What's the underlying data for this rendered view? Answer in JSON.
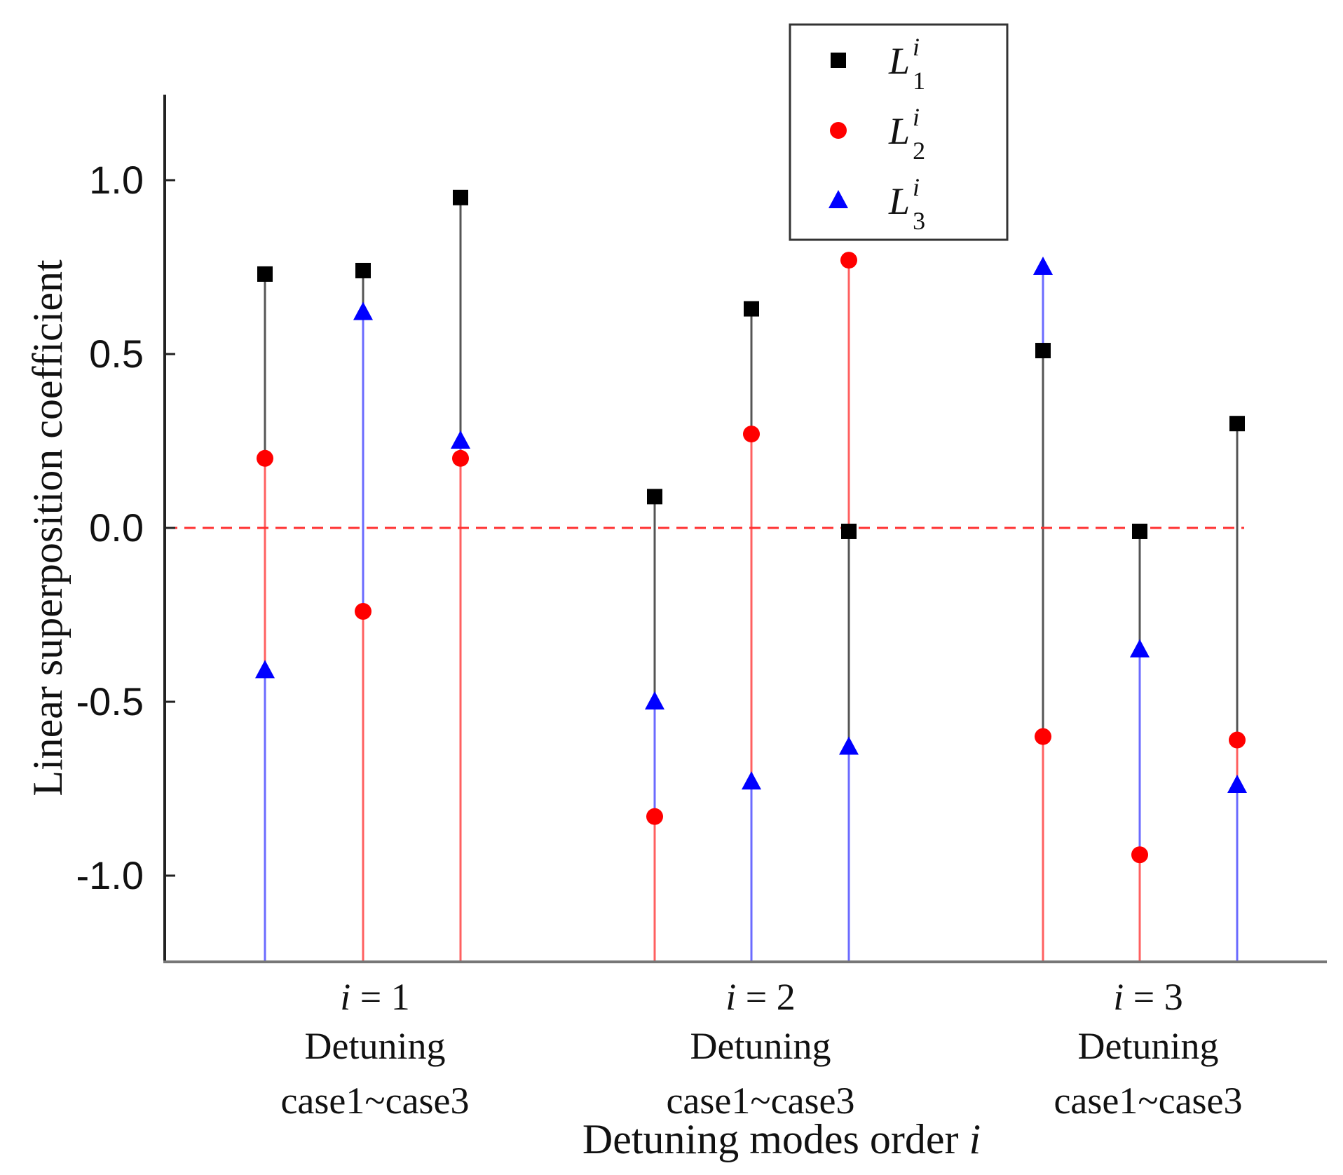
{
  "chart_data": {
    "type": "stem",
    "ylabel": "Linear superposition coefficient",
    "xlabel": "Detuning modes order i",
    "ylim": [
      -1.25,
      1.25
    ],
    "yticks": [
      1.0,
      0.5,
      0.0,
      -0.5,
      -1.0
    ],
    "ytick_labels": [
      "1.0",
      "0.5",
      "0.0",
      "-0.5",
      "-1.0"
    ],
    "reference_line": {
      "y": 0.0,
      "style": "dashed",
      "color": "#ff3030"
    },
    "groups": [
      {
        "label_line1": "i = 1",
        "label_line2": "Detuning",
        "label_line3": "case1~case3"
      },
      {
        "label_line1": "i = 2",
        "label_line2": "Detuning",
        "label_line3": "case1~case3"
      },
      {
        "label_line1": "i = 3",
        "label_line2": "Detuning",
        "label_line3": "case1~case3"
      }
    ],
    "series": [
      {
        "name": "L1",
        "legend_base": "L",
        "legend_sub": "1",
        "legend_sup": "i",
        "marker": "square",
        "color": "#000000",
        "stem_color": "#555555",
        "values": [
          0.73,
          0.74,
          0.95,
          0.09,
          0.63,
          -0.01,
          0.51,
          -0.01,
          0.3
        ]
      },
      {
        "name": "L2",
        "legend_base": "L",
        "legend_sub": "2",
        "legend_sup": "i",
        "marker": "circle",
        "color": "#ff0000",
        "stem_color": "#ff6060",
        "values": [
          0.2,
          -0.24,
          0.2,
          -0.83,
          0.27,
          0.77,
          -0.6,
          -0.94,
          -0.61
        ]
      },
      {
        "name": "L3",
        "legend_base": "L",
        "legend_sub": "3",
        "legend_sup": "i",
        "marker": "triangle",
        "color": "#0000ff",
        "stem_color": "#6b6bff",
        "values": [
          -0.41,
          0.62,
          0.25,
          -0.5,
          -0.73,
          -0.63,
          0.75,
          -0.35,
          -0.74
        ]
      }
    ],
    "legend_position": "top-center"
  }
}
